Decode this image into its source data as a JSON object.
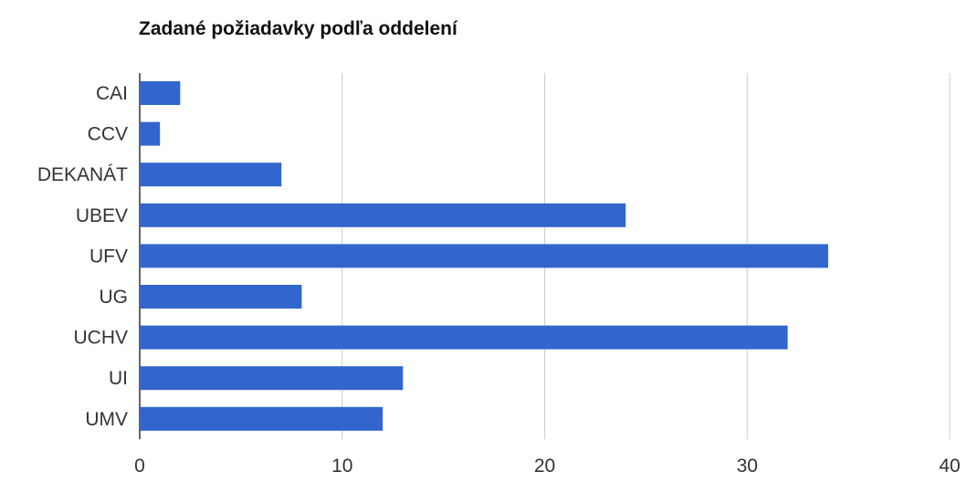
{
  "chart_data": {
    "type": "bar",
    "orientation": "horizontal",
    "title": "Zadané požiadavky podľa oddelení",
    "categories": [
      "CAI",
      "CCV",
      "DEKANÁT",
      "UBEV",
      "UFV",
      "UG",
      "UCHV",
      "UI",
      "UMV"
    ],
    "values": [
      2,
      1,
      7,
      24,
      34,
      8,
      32,
      13,
      12
    ],
    "xlim": [
      0,
      40
    ],
    "xticks": [
      0,
      10,
      20,
      30,
      40
    ],
    "xlabel": "",
    "ylabel": "",
    "grid": "vertical",
    "legend": "none",
    "colors": {
      "bar": "#3366cc",
      "grid": "#cccccc",
      "axis": "#333333"
    }
  }
}
